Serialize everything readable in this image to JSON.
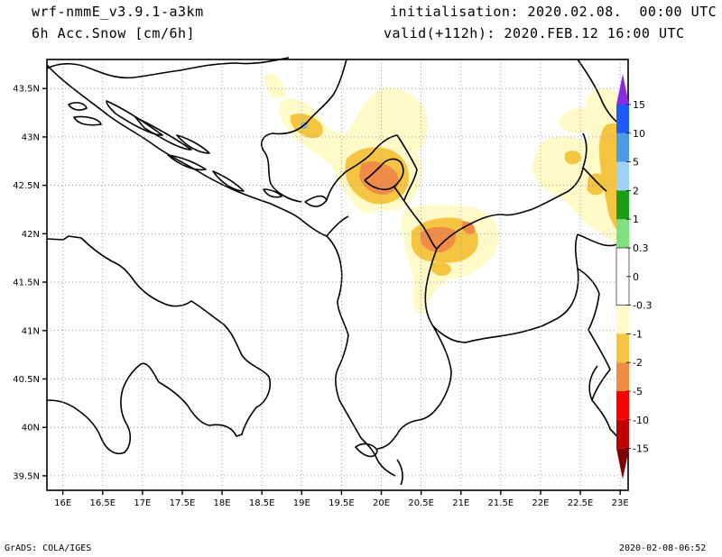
{
  "header": {
    "model": "wrf-nmmE_v3.9.1-a3km",
    "field": "6h Acc.Snow [cm/6h]",
    "init": "initialisation: 2020.02.08.  00:00 UTC",
    "valid": "valid(+112h): 2020.FEB.12 16:00 UTC"
  },
  "map": {
    "lat_ticks": [
      "43.5N",
      "43N",
      "42.5N",
      "42N",
      "41.5N",
      "41N",
      "40.5N",
      "40N",
      "39.5N"
    ],
    "lon_ticks": [
      "16E",
      "16.5E",
      "17E",
      "17.5E",
      "18E",
      "18.5E",
      "19E",
      "19.5E",
      "20E",
      "20.5E",
      "21E",
      "21.5E",
      "22E",
      "22.5E",
      "23E"
    ],
    "lat_range": [
      39.35,
      43.8
    ],
    "lon_range": [
      15.8,
      23.1
    ]
  },
  "colorbar": {
    "labels": [
      "15",
      "10",
      "5",
      "2",
      "1",
      "0.3",
      "0",
      "-0.3",
      "-1",
      "-2",
      "-5",
      "-10",
      "-15"
    ],
    "colors": {
      "purple": "#8a2be2",
      "blue": "#1e5bff",
      "mid_blue": "#4a9be8",
      "light_blue": "#a0d2f5",
      "green": "#1a9e1a",
      "light_green": "#7fe07f",
      "white": "#ffffff",
      "pale_yellow": "#fffac8",
      "yellow_orange": "#f5c542",
      "orange": "#f08c46",
      "red": "#ff0000",
      "dark_red": "#c00000",
      "maroon": "#800000"
    }
  },
  "footer": {
    "left": "GrADS: COLA/IGES",
    "right": "2020-02-08-06:52"
  }
}
